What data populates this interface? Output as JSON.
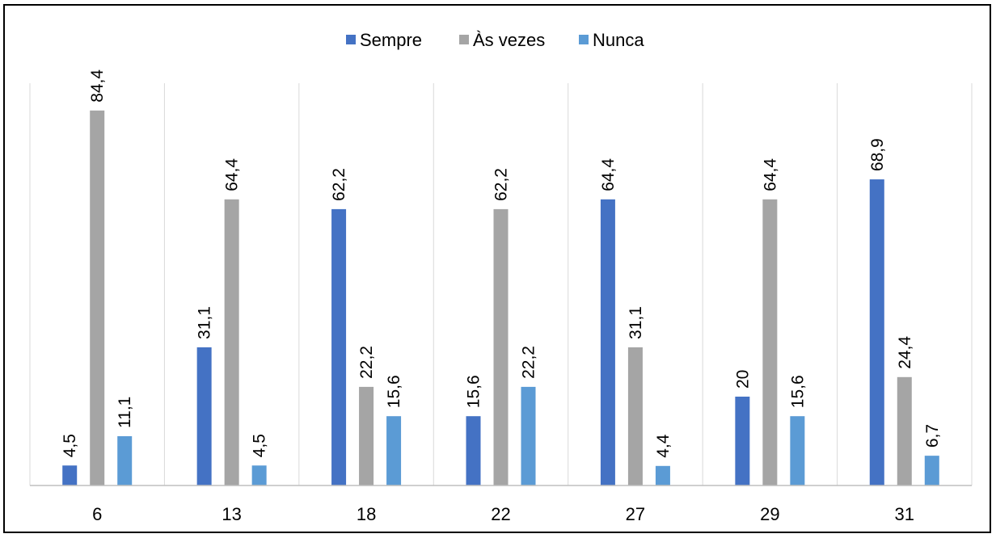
{
  "chart_data": {
    "type": "bar",
    "categories": [
      "6",
      "13",
      "18",
      "22",
      "27",
      "29",
      "31"
    ],
    "series": [
      {
        "name": "Sempre",
        "color": "#4472C4",
        "values": [
          4.5,
          31.1,
          62.2,
          15.6,
          64.4,
          20,
          68.9
        ]
      },
      {
        "name": "Às vezes",
        "color": "#A5A5A5",
        "values": [
          84.4,
          64.4,
          22.2,
          62.2,
          31.1,
          64.4,
          24.4
        ]
      },
      {
        "name": "Nunca",
        "color": "#5B9BD5",
        "values": [
          11.1,
          4.5,
          15.6,
          22.2,
          4.4,
          15.6,
          6.7
        ]
      }
    ],
    "value_labels": [
      [
        "4,5",
        "31,1",
        "62,2",
        "15,6",
        "64,4",
        "20",
        "68,9"
      ],
      [
        "84,4",
        "64,4",
        "22,2",
        "62,2",
        "31,1",
        "64,4",
        "24,4"
      ],
      [
        "11,1",
        "4,5",
        "15,6",
        "22,2",
        "4,4",
        "15,6",
        "6,7"
      ]
    ],
    "legend_position": "top",
    "ylim": [
      0,
      100
    ],
    "grid": "vertical category separators"
  }
}
